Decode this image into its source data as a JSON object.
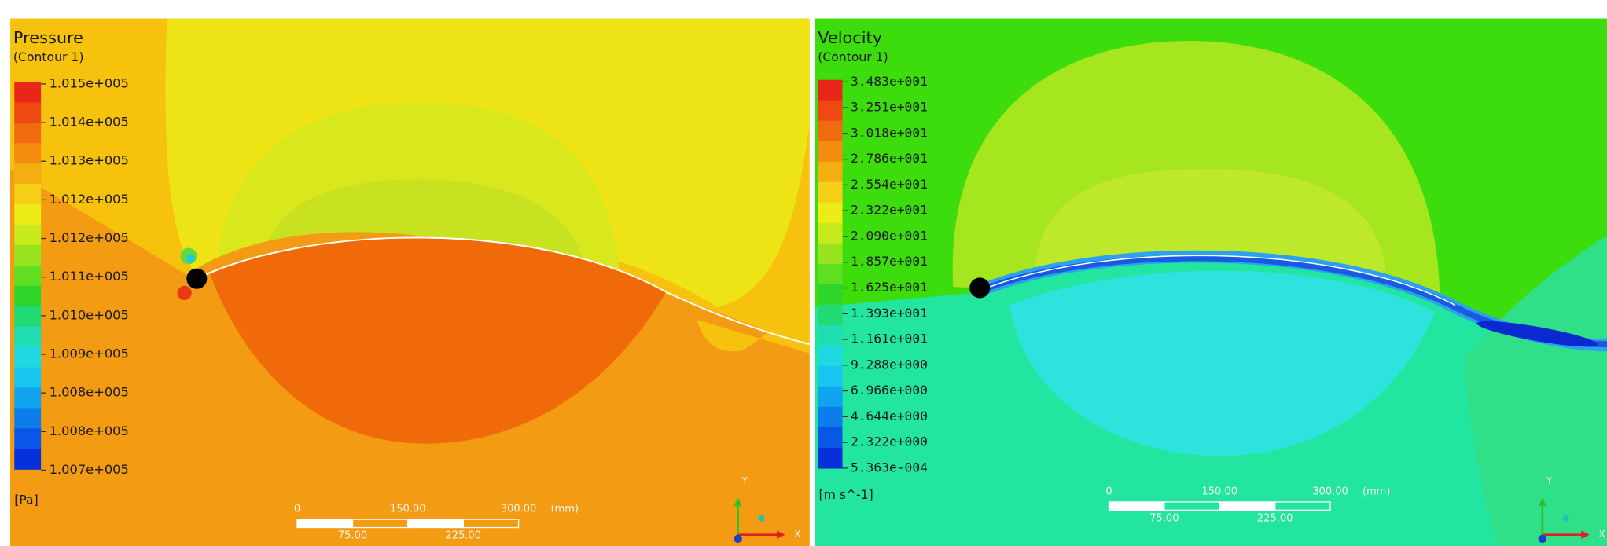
{
  "panels": [
    {
      "title": "Pressure",
      "subtitle": "(Contour  1)",
      "legend_labels": [
        "1.015e+005",
        "1.014e+005",
        "1.013e+005",
        "1.012e+005",
        "1.012e+005",
        "1.011e+005",
        "1.010e+005",
        "1.009e+005",
        "1.008e+005",
        "1.008e+005",
        "1.007e+005"
      ],
      "unit": "[Pa]",
      "scale_labels_top": [
        "0",
        "150.00",
        "300.00",
        "(mm)"
      ],
      "scale_labels_bottom": [
        "75.00",
        "225.00"
      ],
      "triad_labels": [
        "Y",
        "X"
      ]
    },
    {
      "title": "Velocity",
      "subtitle": "(Contour  1)",
      "legend_labels": [
        "3.483e+001",
        "3.251e+001",
        "3.018e+001",
        "2.786e+001",
        "2.554e+001",
        "2.322e+001",
        "2.090e+001",
        "1.857e+001",
        "1.625e+001",
        "1.393e+001",
        "1.161e+001",
        "9.288e+000",
        "6.966e+000",
        "4.644e+000",
        "2.322e+000",
        "5.363e-004"
      ],
      "unit": "[m s^-1]",
      "scale_labels_top": [
        "0",
        "150.00",
        "300.00",
        "(mm)"
      ],
      "scale_labels_bottom": [
        "75.00",
        "225.00"
      ],
      "triad_labels": [
        "Y",
        "X"
      ]
    }
  ],
  "legend_colors": [
    "#e8261a",
    "#ef4812",
    "#f06a10",
    "#f48c10",
    "#f5ae12",
    "#f5d016",
    "#ecec18",
    "#c8ea1c",
    "#98e41e",
    "#60de22",
    "#2ed62c",
    "#22da74",
    "#20deb2",
    "#20d8e2",
    "#18c4f0",
    "#10a4f0",
    "#0c7eec",
    "#0a56e6",
    "#0830da"
  ]
}
